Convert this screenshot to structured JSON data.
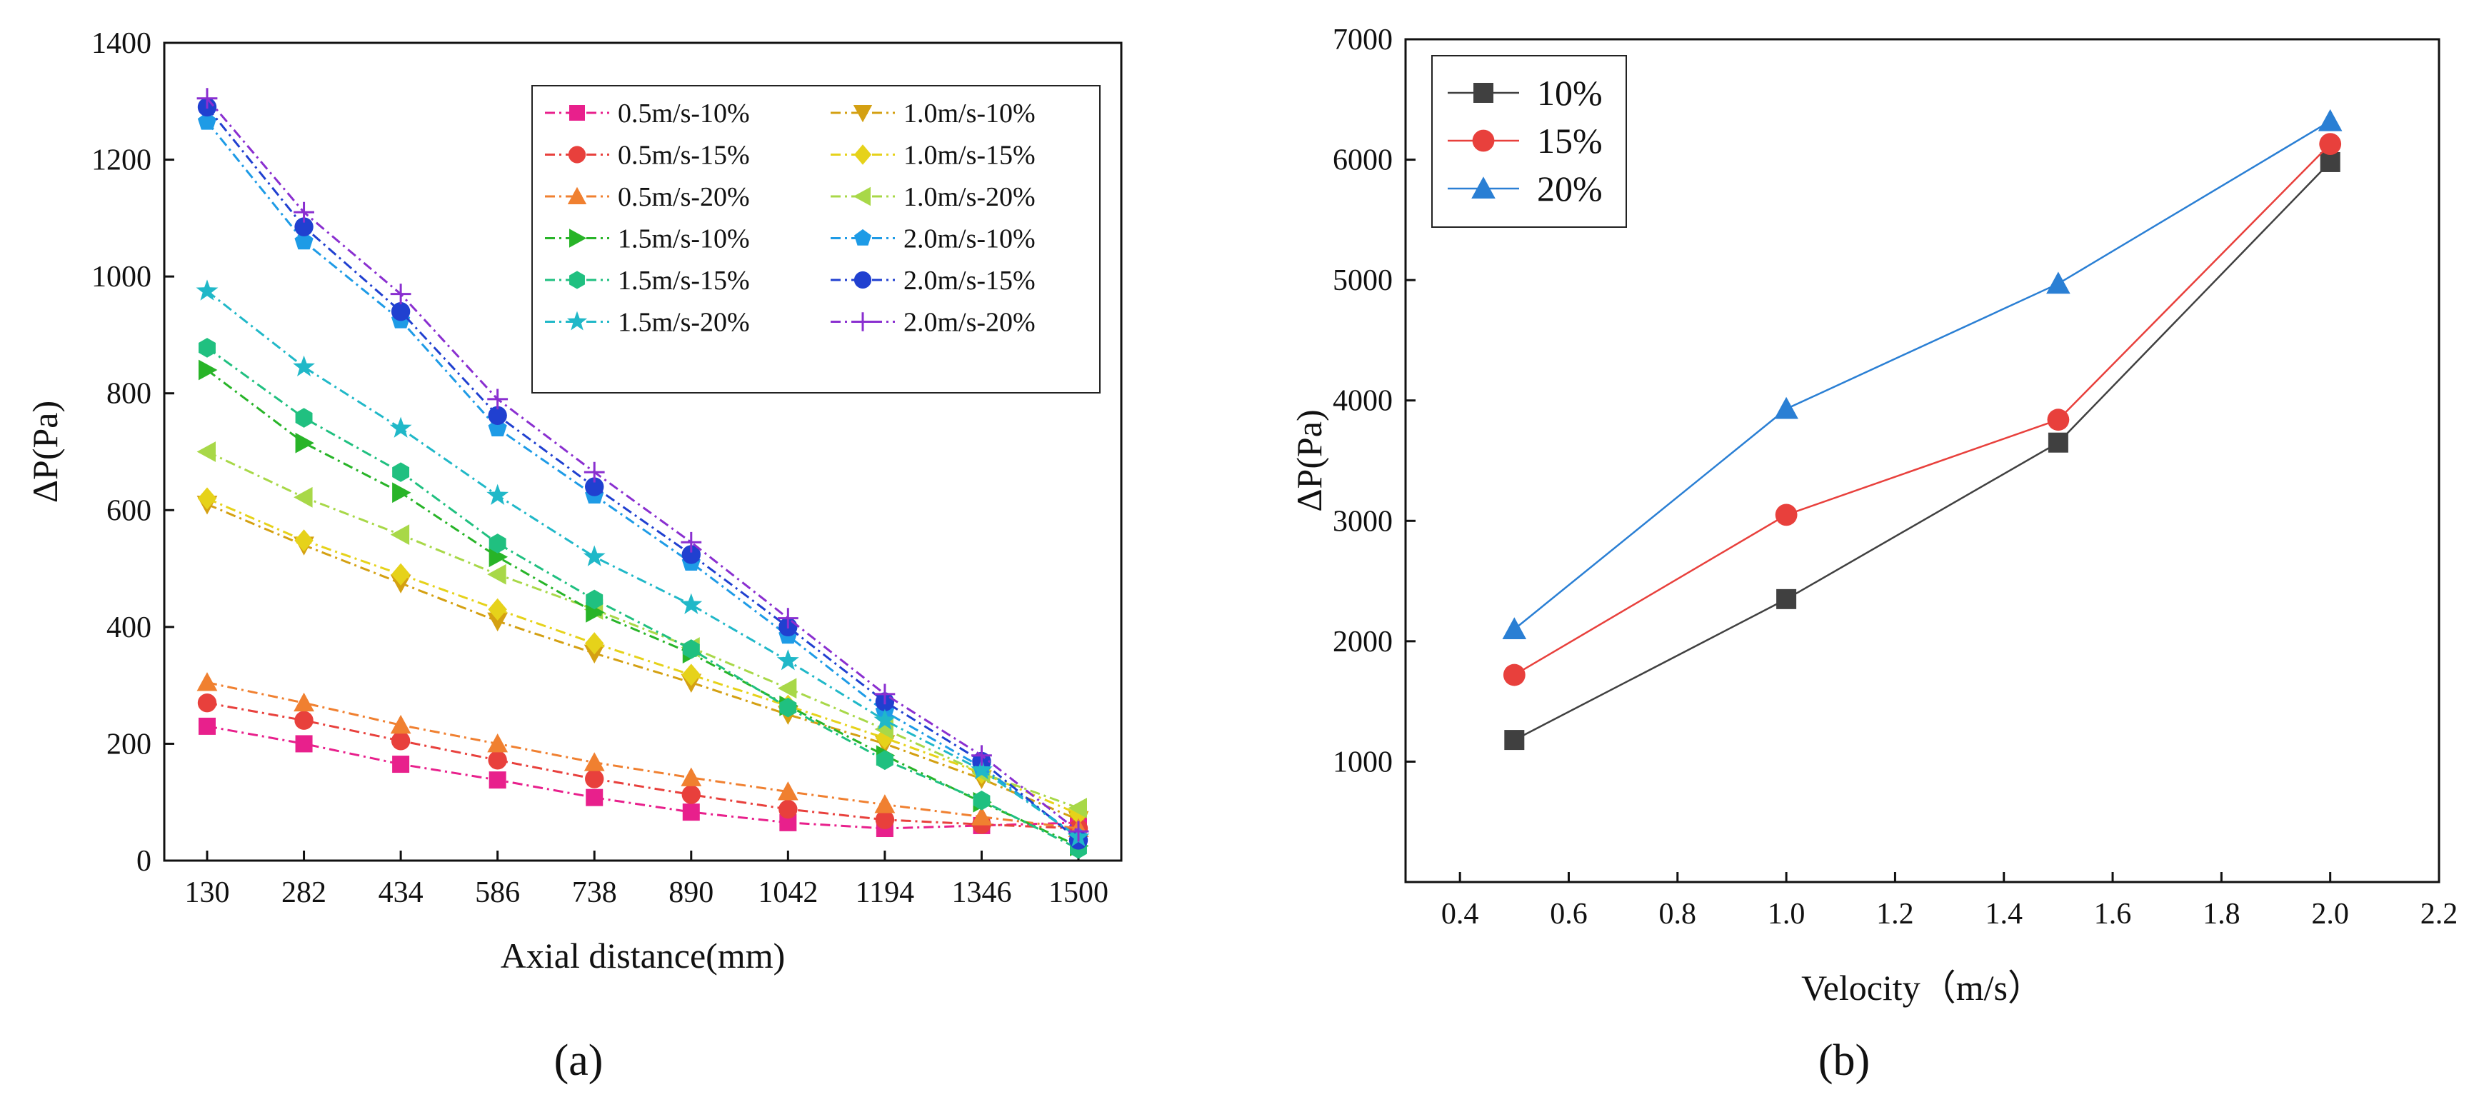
{
  "panel_labels": {
    "a": "(a)",
    "b": "(b)"
  },
  "chart_data": [
    {
      "type": "line",
      "panel": "a",
      "title": "",
      "xlabel": "Axial distance(mm)",
      "ylabel": "ΔP(Pa)",
      "categories": [
        "130",
        "282",
        "434",
        "586",
        "738",
        "890",
        "1042",
        "1194",
        "1346",
        "1500"
      ],
      "ylim": [
        0,
        1400
      ],
      "yticks": [
        0,
        200,
        400,
        600,
        800,
        1000,
        1200,
        1400
      ],
      "legend_position": "top-right",
      "series": [
        {
          "name": "0.5m/s-10%",
          "color": "#e8208c",
          "marker": "square",
          "values": [
            230,
            200,
            165,
            138,
            108,
            83,
            65,
            55,
            60,
            65
          ]
        },
        {
          "name": "1.0m/s-10%",
          "color": "#d4a012",
          "marker": "tri-down",
          "values": [
            610,
            540,
            475,
            410,
            355,
            305,
            250,
            200,
            140,
            70
          ]
        },
        {
          "name": "0.5m/s-15%",
          "color": "#e8403c",
          "marker": "circle",
          "values": [
            270,
            240,
            205,
            172,
            140,
            113,
            88,
            70,
            62,
            55
          ]
        },
        {
          "name": "1.0m/s-15%",
          "color": "#e6d21a",
          "marker": "diamond",
          "values": [
            620,
            548,
            490,
            430,
            372,
            318,
            265,
            210,
            150,
            80
          ]
        },
        {
          "name": "0.5m/s-20%",
          "color": "#f08030",
          "marker": "tri-up",
          "values": [
            305,
            270,
            232,
            200,
            168,
            142,
            118,
            96,
            75,
            55
          ]
        },
        {
          "name": "1.0m/s-20%",
          "color": "#a8d848",
          "marker": "tri-left",
          "values": [
            700,
            622,
            558,
            490,
            430,
            365,
            295,
            225,
            150,
            90
          ]
        },
        {
          "name": "1.5m/s-10%",
          "color": "#28b428",
          "marker": "tri-right",
          "values": [
            840,
            715,
            630,
            520,
            425,
            355,
            265,
            180,
            100,
            25
          ]
        },
        {
          "name": "2.0m/s-10%",
          "color": "#1e9be6",
          "marker": "pentagon",
          "values": [
            1265,
            1060,
            925,
            740,
            625,
            510,
            385,
            255,
            160,
            40
          ]
        },
        {
          "name": "1.5m/s-15%",
          "color": "#20c080",
          "marker": "hexagon",
          "values": [
            878,
            758,
            665,
            543,
            447,
            362,
            262,
            172,
            103,
            20
          ]
        },
        {
          "name": "2.0m/s-15%",
          "color": "#2040d0",
          "marker": "circle",
          "values": [
            1290,
            1085,
            940,
            762,
            640,
            524,
            400,
            272,
            170,
            35
          ]
        },
        {
          "name": "1.5m/s-20%",
          "color": "#20b8c8",
          "marker": "star",
          "values": [
            975,
            845,
            740,
            625,
            520,
            438,
            342,
            240,
            155,
            40
          ]
        },
        {
          "name": "2.0m/s-20%",
          "color": "#8a2fd0",
          "marker": "plus",
          "values": [
            1305,
            1110,
            970,
            790,
            665,
            545,
            415,
            285,
            180,
            50
          ]
        }
      ]
    },
    {
      "type": "line",
      "panel": "b",
      "title": "",
      "xlabel": "Velocity（m/s）",
      "ylabel": "ΔP(Pa)",
      "xlim": [
        0.3,
        2.2
      ],
      "xticks": [
        "0.4",
        "0.6",
        "0.8",
        "1.0",
        "1.2",
        "1.4",
        "1.6",
        "1.8",
        "2.0",
        "2.2"
      ],
      "ylim": [
        0,
        7000
      ],
      "yticks": [
        1000,
        2000,
        3000,
        4000,
        5000,
        6000,
        7000
      ],
      "legend_position": "top-left",
      "x": [
        0.5,
        1.0,
        1.5,
        2.0
      ],
      "series": [
        {
          "name": "10%",
          "color": "#404040",
          "marker": "square",
          "values": [
            1180,
            2350,
            3650,
            5980
          ]
        },
        {
          "name": "15%",
          "color": "#e8403c",
          "marker": "circle",
          "values": [
            1720,
            3050,
            3840,
            6130
          ]
        },
        {
          "name": "20%",
          "color": "#2a7fd4",
          "marker": "tri-up",
          "values": [
            2100,
            3930,
            4970,
            6320
          ]
        }
      ]
    }
  ]
}
